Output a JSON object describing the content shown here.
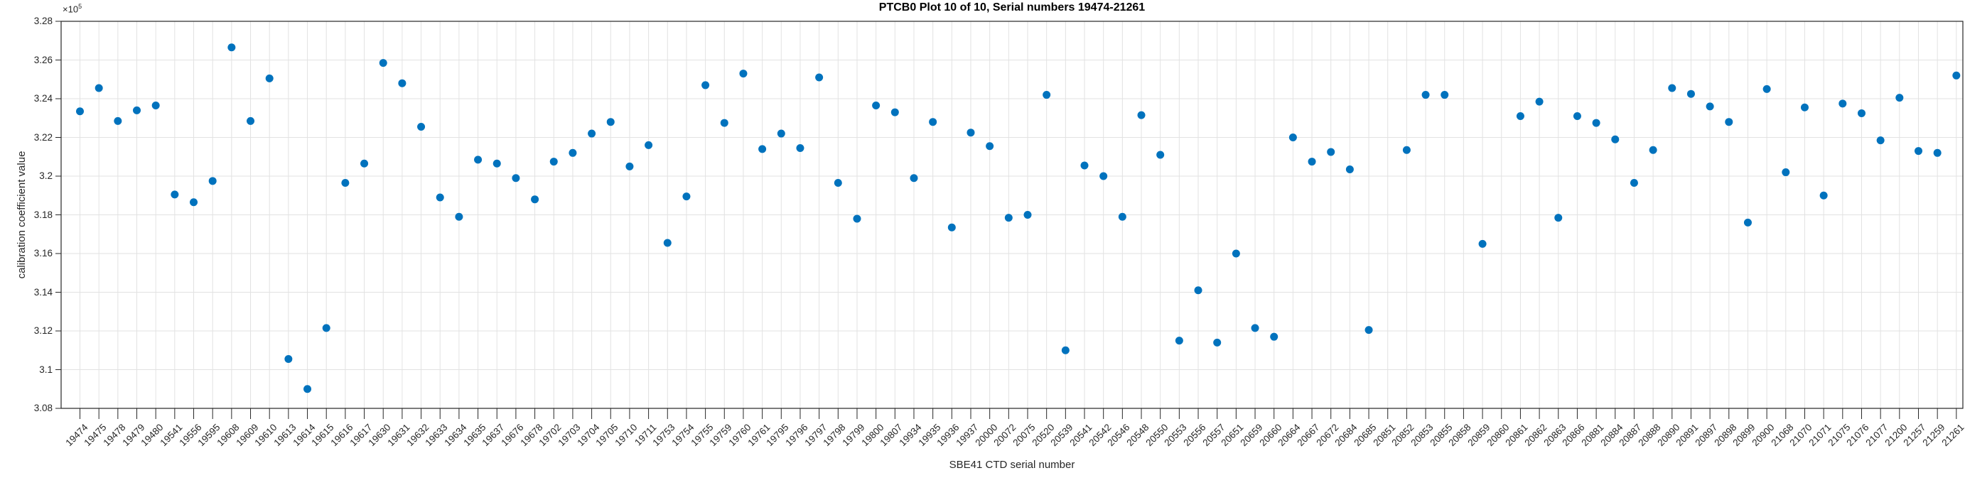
{
  "chart": {
    "title": "PTCB0 Plot 10 of 10, Serial numbers 19474-21261",
    "xlabel": "SBE41 CTD serial number",
    "ylabel": "calibration coefficient value",
    "multiplier_base": "×10",
    "multiplier_exp": "5"
  },
  "colors": {
    "accent": "#0072BD",
    "grid": "#e2e2e2",
    "axis": "#262626",
    "background": "#ffffff"
  },
  "chart_data": {
    "type": "scatter",
    "title": "PTCB0 Plot 10 of 10, Serial numbers 19474-21261",
    "xlabel": "SBE41 CTD serial number",
    "ylabel": "calibration coefficient value",
    "y_unit_multiplier": "1e5",
    "ylim": [
      3.08,
      3.28
    ],
    "yticks": [
      3.08,
      3.1,
      3.12,
      3.14,
      3.16,
      3.18,
      3.2,
      3.22,
      3.24,
      3.26,
      3.28
    ],
    "ytick_labels": [
      "3.08",
      "3.1",
      "3.12",
      "3.14",
      "3.16",
      "3.18",
      "3.2",
      "3.22",
      "3.24",
      "3.26",
      "3.28"
    ],
    "grid": true,
    "legend_position": null,
    "marker": "filled-circle",
    "marker_color": "#0072BD",
    "categories": [
      "19474",
      "19475",
      "19478",
      "19479",
      "19480",
      "19541",
      "19556",
      "19595",
      "19608",
      "19609",
      "19610",
      "19613",
      "19614",
      "19615",
      "19616",
      "19617",
      "19630",
      "19631",
      "19632",
      "19633",
      "19634",
      "19635",
      "19637",
      "19676",
      "19678",
      "19702",
      "19703",
      "19704",
      "19705",
      "19710",
      "19711",
      "19753",
      "19754",
      "19755",
      "19759",
      "19760",
      "19761",
      "19795",
      "19796",
      "19797",
      "19798",
      "19799",
      "19800",
      "19807",
      "19934",
      "19935",
      "19936",
      "19937",
      "20000",
      "20072",
      "20075",
      "20520",
      "20539",
      "20541",
      "20542",
      "20546",
      "20548",
      "20550",
      "20553",
      "20556",
      "20557",
      "20651",
      "20659",
      "20660",
      "20664",
      "20667",
      "20672",
      "20684",
      "20685",
      "20851",
      "20852",
      "20853",
      "20855",
      "20858",
      "20859",
      "20860",
      "20861",
      "20862",
      "20863",
      "20866",
      "20881",
      "20884",
      "20887",
      "20888",
      "20890",
      "20891",
      "20897",
      "20898",
      "20899",
      "20900",
      "21068",
      "21070",
      "21071",
      "21075",
      "21076",
      "21077",
      "21200",
      "21257",
      "21259",
      "21261"
    ],
    "values": [
      3.2335,
      3.2455,
      3.2285,
      3.234,
      3.2365,
      3.1905,
      3.1865,
      3.1975,
      3.2665,
      3.2285,
      3.2505,
      3.1055,
      3.09,
      3.1215,
      3.1965,
      3.2065,
      3.2585,
      3.248,
      3.2255,
      3.189,
      3.179,
      3.2085,
      3.2065,
      3.199,
      3.188,
      3.2075,
      3.212,
      3.222,
      3.228,
      3.205,
      3.216,
      3.1655,
      3.1895,
      3.247,
      3.2275,
      3.253,
      3.214,
      3.222,
      3.2145,
      3.251,
      3.1965,
      3.178,
      3.2365,
      3.233,
      3.199,
      3.228,
      3.1735,
      3.2225,
      3.2155,
      3.1785,
      3.18,
      3.242,
      3.11,
      3.2055,
      3.2,
      3.179,
      3.2315,
      3.211,
      3.115,
      3.141,
      3.114,
      3.16,
      3.1215,
      3.117,
      3.22,
      3.2075,
      3.2125,
      3.2035,
      3.1205,
      null,
      3.2135,
      3.242,
      3.242,
      null,
      3.165,
      null,
      3.231,
      3.2385,
      3.1785,
      3.231,
      3.2275,
      3.219,
      3.1965,
      3.2135,
      3.2455,
      3.2425,
      3.236,
      3.228,
      3.176,
      3.245,
      3.202,
      3.2355,
      3.19,
      3.2375,
      3.2325,
      3.2185,
      3.2405,
      3.213,
      3.212,
      3.252
    ],
    "missing_serials": [
      "20851",
      "20858",
      "20860"
    ]
  }
}
